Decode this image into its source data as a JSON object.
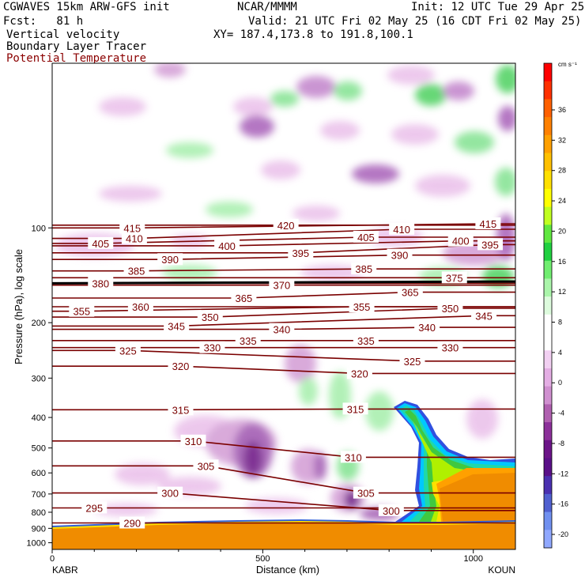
{
  "header": {
    "model": "CGWAVES 15km ARW-GFS init",
    "forecast": "Fcst:   81 h",
    "center": "NCAR/MMMM",
    "init": "Init: 12 UTC Tue 29 Apr 25",
    "valid": "Valid: 21 UTC Fri 02 May 25 (16 CDT Fri 02 May 25)",
    "xy": "XY= 187.4,173.8 to 191.8,100.1",
    "field1": "Vertical velocity",
    "field2": "Boundary Layer Tracer",
    "field3": "Potential Temperature"
  },
  "chart_data": {
    "type": "heatmap",
    "title": "",
    "xlabel": "Distance (km)",
    "ylabel": "Pressure (hPa), log scale",
    "xlim": [
      0,
      1100
    ],
    "ylim": [
      1050,
      30
    ],
    "x_ticks": [
      0,
      500,
      1000
    ],
    "y_ticks": [
      100,
      200,
      300,
      400,
      500,
      600,
      700,
      800,
      900,
      1000
    ],
    "x_endpoints": {
      "left": "KABR",
      "right": "KOUN"
    },
    "colorbar": {
      "unit": "cm s⁻¹",
      "labels": [
        36,
        32,
        28,
        24,
        20,
        16,
        12,
        8,
        4,
        0,
        -4,
        -8,
        -12,
        -16,
        -20
      ],
      "colors": [
        "#ff0000",
        "#ff3000",
        "#ff6000",
        "#ff8000",
        "#ffa000",
        "#ffc000",
        "#ffe000",
        "#ffff00",
        "#c0ff20",
        "#60e840",
        "#20d040",
        "#70ee70",
        "#aaf5aa",
        "#ddfbdd",
        "#ffffff",
        "#ffffff",
        "#f2d0f2",
        "#e4aee4",
        "#d090d0",
        "#b060b0",
        "#8c309a",
        "#6c1488",
        "#5a1088",
        "#4a30b0",
        "#5060d0",
        "#7090f0",
        "#90a8ff"
      ]
    },
    "isentropes": {
      "color": "#7a0000",
      "labels": [
        {
          "value": 415,
          "x": 190,
          "p": 100
        },
        {
          "value": 420,
          "x": 555,
          "p": 98
        },
        {
          "value": 410,
          "x": 830,
          "p": 101
        },
        {
          "value": 415,
          "x": 1035,
          "p": 97
        },
        {
          "value": 405,
          "x": 115,
          "p": 112
        },
        {
          "value": 410,
          "x": 195,
          "p": 108
        },
        {
          "value": 400,
          "x": 415,
          "p": 114
        },
        {
          "value": 405,
          "x": 745,
          "p": 107
        },
        {
          "value": 400,
          "x": 970,
          "p": 110
        },
        {
          "value": 395,
          "x": 1040,
          "p": 113
        },
        {
          "value": 390,
          "x": 280,
          "p": 126
        },
        {
          "value": 395,
          "x": 590,
          "p": 120
        },
        {
          "value": 390,
          "x": 825,
          "p": 122
        },
        {
          "value": 380,
          "x": 115,
          "p": 150
        },
        {
          "value": 385,
          "x": 200,
          "p": 137
        },
        {
          "value": 385,
          "x": 740,
          "p": 135
        },
        {
          "value": 375,
          "x": 955,
          "p": 144
        },
        {
          "value": 370,
          "x": 545,
          "p": 152
        },
        {
          "value": 365,
          "x": 455,
          "p": 167
        },
        {
          "value": 365,
          "x": 850,
          "p": 160
        },
        {
          "value": 360,
          "x": 210,
          "p": 178
        },
        {
          "value": 355,
          "x": 70,
          "p": 184
        },
        {
          "value": 355,
          "x": 735,
          "p": 178
        },
        {
          "value": 350,
          "x": 945,
          "p": 180
        },
        {
          "value": 350,
          "x": 375,
          "p": 192
        },
        {
          "value": 345,
          "x": 295,
          "p": 205
        },
        {
          "value": 340,
          "x": 545,
          "p": 210
        },
        {
          "value": 340,
          "x": 890,
          "p": 207
        },
        {
          "value": 345,
          "x": 1025,
          "p": 190
        },
        {
          "value": 335,
          "x": 465,
          "p": 228
        },
        {
          "value": 335,
          "x": 745,
          "p": 228
        },
        {
          "value": 330,
          "x": 380,
          "p": 240
        },
        {
          "value": 330,
          "x": 945,
          "p": 240
        },
        {
          "value": 325,
          "x": 180,
          "p": 245
        },
        {
          "value": 325,
          "x": 855,
          "p": 265
        },
        {
          "value": 320,
          "x": 305,
          "p": 275
        },
        {
          "value": 320,
          "x": 730,
          "p": 290
        },
        {
          "value": 315,
          "x": 305,
          "p": 378
        },
        {
          "value": 315,
          "x": 720,
          "p": 376
        },
        {
          "value": 310,
          "x": 335,
          "p": 475
        },
        {
          "value": 310,
          "x": 715,
          "p": 535
        },
        {
          "value": 305,
          "x": 365,
          "p": 570
        },
        {
          "value": 305,
          "x": 745,
          "p": 695
        },
        {
          "value": 300,
          "x": 280,
          "p": 695
        },
        {
          "value": 295,
          "x": 100,
          "p": 775
        },
        {
          "value": 290,
          "x": 190,
          "p": 865
        },
        {
          "value": 300,
          "x": 805,
          "p": 790
        }
      ]
    },
    "series": [
      {
        "name": "Boundary Layer Tracer",
        "color": "#ff8c00"
      },
      {
        "name": "Potential Temperature",
        "color": "#7a0000"
      },
      {
        "name": "Vertical velocity",
        "color": "#c8a0d8"
      }
    ]
  }
}
